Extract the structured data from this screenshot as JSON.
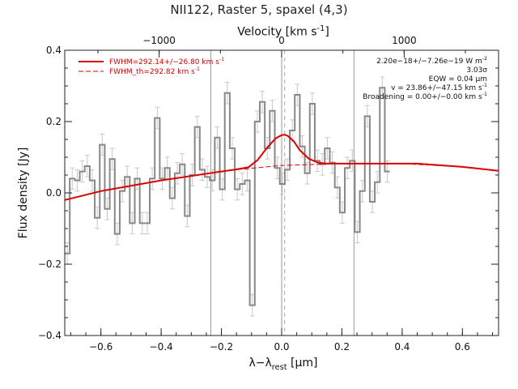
{
  "title": "NII122, Raster 5, spaxel (4,3)",
  "top_axis": {
    "label_prefix": "Velocity [km s",
    "label_sup": "-1",
    "label_suffix": "]",
    "ticks": [
      "−1000",
      "0",
      "1000"
    ]
  },
  "legend": {
    "fit_label": "FWHM=292.14+/−26.80 km s",
    "fit_sup": "-1",
    "fit_color": "#dd0000",
    "th_label": "FWHM_th=292.82 km s",
    "th_sup": "-1",
    "th_color": "#dd0000"
  },
  "annotations": {
    "flux_main": "2.20e−18+/−7.26e−19 W m",
    "flux_sup": "-2",
    "sigma": "3.03σ",
    "eqw_prefix": "EQW = 0.04 ",
    "eqw_unit": "μm",
    "velocity": "v = 23.86+/−47.15 km s",
    "velocity_sup": "-1",
    "broadening": "Broadening = 0.00+/−0.00 km s",
    "broadening_sup": "-1"
  },
  "axes": {
    "xlabel_main": "λ−λ",
    "xlabel_sub": "rest",
    "xlabel_unit": " [μm]",
    "ylabel": "Flux density [Jy]"
  },
  "chart_data": {
    "type": "line",
    "title": "NII122, Raster 5, spaxel (4,3)",
    "xlabel": "λ−λrest [μm]",
    "ylabel": "Flux density [Jy]",
    "xlim": [
      -0.72,
      0.72
    ],
    "ylim": [
      -0.4,
      0.4
    ],
    "x_ticks": [
      -0.6,
      -0.4,
      -0.2,
      0.0,
      0.2,
      0.4,
      0.6
    ],
    "x_tick_labels": [
      "−0.6",
      "−0.4",
      "−0.2",
      "0.0",
      "0.2",
      "0.4",
      "0.6"
    ],
    "y_ticks": [
      -0.4,
      -0.2,
      0.0,
      0.2,
      0.4
    ],
    "y_tick_labels": [
      "−0.4",
      "−0.2",
      "0.0",
      "0.2",
      "0.4"
    ],
    "top_velocity_ticks_kms": [
      -1000,
      0,
      1000
    ],
    "vertical_lines_x": [
      -0.235,
      0.0,
      0.24
    ],
    "line_center_x": 0.01,
    "histogram": {
      "x_start": -0.72,
      "bin_width": 0.0166,
      "y": [
        -0.17,
        0.04,
        0.035,
        0.06,
        0.075,
        0.035,
        -0.07,
        0.135,
        -0.045,
        0.095,
        -0.115,
        0.005,
        0.045,
        -0.085,
        0.04,
        -0.085,
        -0.085,
        0.04,
        0.21,
        0.04,
        0.07,
        -0.015,
        0.055,
        0.08,
        -0.065,
        0.05,
        0.185,
        0.065,
        0.045,
        0.035,
        0.155,
        0.01,
        0.28,
        0.125,
        0.01,
        0.025,
        0.035,
        -0.315,
        0.2,
        0.255,
        0.125,
        0.23,
        0.07,
        0.025,
        0.065,
        0.175,
        0.275,
        0.13,
        0.055,
        0.25,
        0.09,
        0.08,
        0.125,
        0.085,
        0.015,
        -0.055,
        0.07,
        0.09,
        -0.11,
        0.005,
        0.215,
        -0.025,
        0.03,
        0.295,
        0.06
      ],
      "err": 0.03,
      "color": "#888888"
    },
    "series": [
      {
        "name": "FWHM=292.14+/−26.80 km s-1",
        "style": "solid",
        "color": "#dd0000",
        "x": [
          -0.72,
          -0.6,
          -0.4,
          -0.2,
          -0.15,
          -0.11,
          -0.08,
          -0.05,
          -0.02,
          0.0,
          0.01,
          0.02,
          0.04,
          0.06,
          0.09,
          0.12,
          0.15,
          0.3,
          0.45,
          0.6,
          0.72
        ],
        "y": [
          -0.02,
          0.005,
          0.035,
          0.06,
          0.066,
          0.072,
          0.092,
          0.125,
          0.153,
          0.162,
          0.163,
          0.16,
          0.145,
          0.12,
          0.096,
          0.085,
          0.082,
          0.082,
          0.082,
          0.073,
          0.062
        ]
      },
      {
        "name": "FWHM_th=292.82 km s-1",
        "style": "dashed",
        "color": "#dd0000",
        "x": [
          -0.72,
          -0.6,
          -0.4,
          -0.2,
          0.0,
          0.2,
          0.4,
          0.6,
          0.72
        ],
        "y": [
          -0.02,
          0.005,
          0.035,
          0.061,
          0.077,
          0.082,
          0.082,
          0.073,
          0.062
        ]
      }
    ]
  }
}
